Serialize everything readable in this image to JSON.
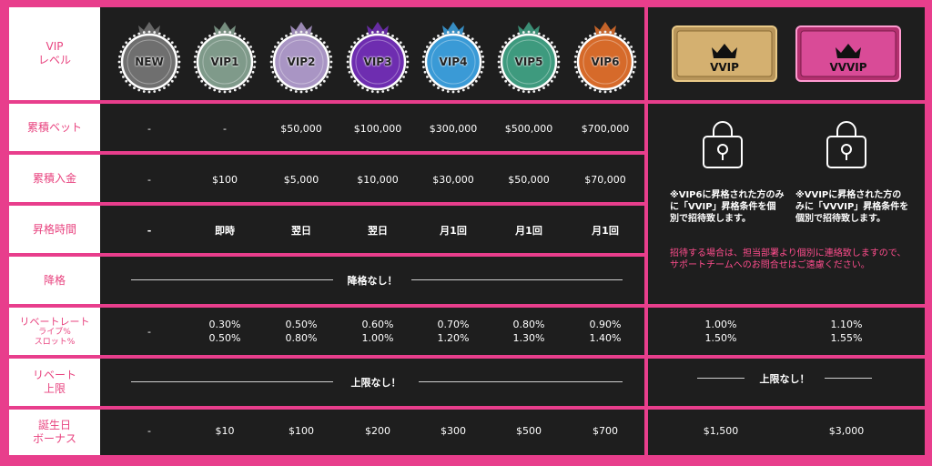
{
  "rows": {
    "level": "VIP\nレベル",
    "bet": "累積ベット",
    "deposit": "累積入金",
    "promotion": "昇格時間",
    "demotion": "降格",
    "rebate_rate": "リベートレート",
    "rebate_sub1": "ライブ%",
    "rebate_sub2": "スロット%",
    "rebate_cap": "リベート\n上限",
    "birthday": "誕生日\nボーナス"
  },
  "tiers": [
    "NEW",
    "VIP1",
    "VIP2",
    "VIP3",
    "VIP4",
    "VIP5",
    "VIP6"
  ],
  "premium_tiers": [
    "VVIP",
    "VVVIP"
  ],
  "colors": {
    "NEW": "#6f6f6f",
    "VIP1": "#7f9a8a",
    "VIP2": "#a995c4",
    "VIP3": "#6e2db0",
    "VIP4": "#3a9ad6",
    "VIP5": "#3e9a7e",
    "VIP6": "#d66a2a",
    "accent": "#e83e8c"
  },
  "bet": [
    "-",
    "-",
    "$50,000",
    "$100,000",
    "$300,000",
    "$500,000",
    "$700,000"
  ],
  "deposit": [
    "-",
    "$100",
    "$5,000",
    "$10,000",
    "$30,000",
    "$50,000",
    "$70,000"
  ],
  "promotion": [
    "-",
    "即時",
    "翌日",
    "翌日",
    "月1回",
    "月1回",
    "月1回"
  ],
  "demotion_text": "降格なし！",
  "rebate": [
    {
      "live": "-",
      "slot": ""
    },
    {
      "live": "0.30%",
      "slot": "0.50%"
    },
    {
      "live": "0.50%",
      "slot": "0.80%"
    },
    {
      "live": "0.60%",
      "slot": "1.00%"
    },
    {
      "live": "0.70%",
      "slot": "1.20%"
    },
    {
      "live": "0.80%",
      "slot": "1.30%"
    },
    {
      "live": "0.90%",
      "slot": "1.40%"
    }
  ],
  "premium_rebate": [
    {
      "live": "1.00%",
      "slot": "1.50%"
    },
    {
      "live": "1.10%",
      "slot": "1.55%"
    }
  ],
  "cap_text": "上限なし！",
  "birthday": [
    "-",
    "$10",
    "$100",
    "$200",
    "$300",
    "$500",
    "$700"
  ],
  "premium_birthday": [
    "$1,500",
    "$3,000"
  ],
  "notes": {
    "vvip": "※VIP6に昇格された方のみに「VVIP」昇格条件を個別で招待致します。",
    "vvvip": "※VVIPに昇格された方のみに「VVVIP」昇格条件を個別で招待致します。",
    "contact": "招待する場合は、担当部署より個別に連絡致しますので、サポートチームへのお問合せはご遠慮ください。"
  }
}
